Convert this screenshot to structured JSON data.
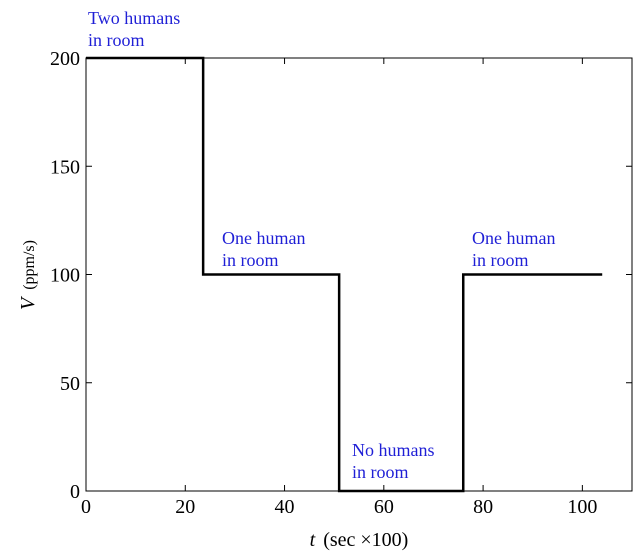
{
  "chart_data": {
    "type": "line",
    "xlabel": {
      "symbol": "t",
      "unit": "(sec ×100)"
    },
    "ylabel": {
      "symbol": "V",
      "unit": "(ppm/s)"
    },
    "x": [
      0,
      23.6,
      23.6,
      51,
      51,
      76,
      76,
      104
    ],
    "series": [
      {
        "color": "#000000",
        "values": [
          200,
          200,
          100,
          100,
          0,
          0,
          100,
          100
        ]
      }
    ],
    "xlim": [
      0,
      110
    ],
    "ylim": [
      0,
      200
    ],
    "xticks": [
      0,
      20,
      40,
      60,
      80,
      100
    ],
    "yticks": [
      0,
      50,
      100,
      150,
      200
    ],
    "grid": false,
    "annotations": [
      {
        "lines": [
          "Two humans",
          "in room"
        ],
        "color": "#1f1fd6"
      },
      {
        "lines": [
          "One human",
          "in room"
        ],
        "color": "#1f1fd6"
      },
      {
        "lines": [
          "No humans",
          "in room"
        ],
        "color": "#1f1fd6"
      },
      {
        "lines": [
          "One human",
          "in room"
        ],
        "color": "#1f1fd6"
      }
    ]
  }
}
